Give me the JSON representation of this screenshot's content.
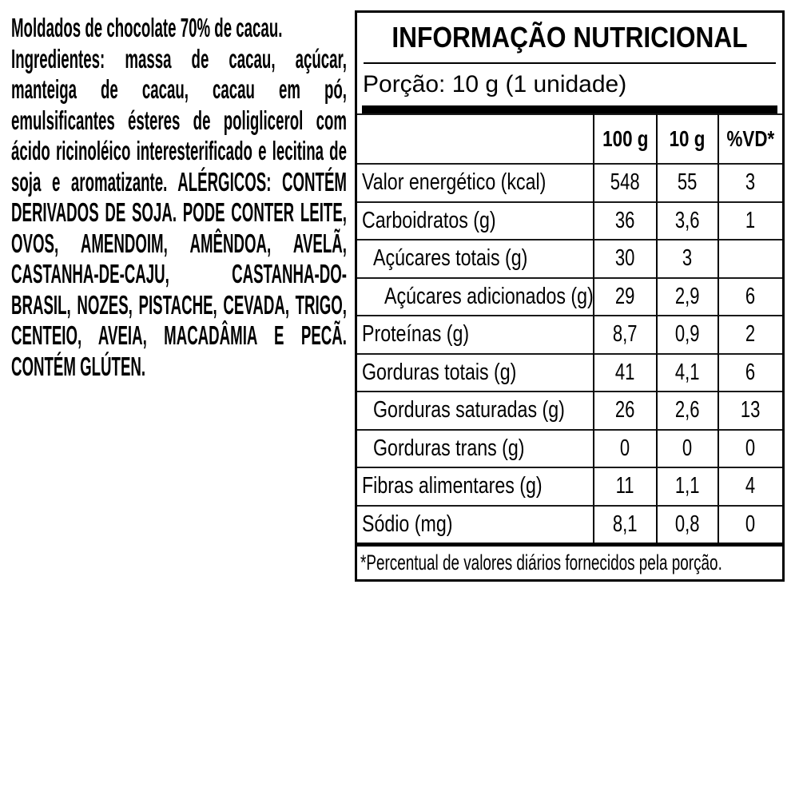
{
  "colors": {
    "text": "#000000",
    "background": "#ffffff",
    "table_border": "#000000"
  },
  "left_panel": {
    "intro": "Moldados de chocolate 70% de cacau.",
    "ingredients_label": "Ingredientes:",
    "ingredients_text": "massa de cacau, açúcar, manteiga de cacau, cacau em pó, emulsificantes ésteres de poliglicerol com ácido ricinoléico interesterificado e lecitina de soja e aromatizante.",
    "allergen_text": "ALÉRGICOS: CONTÉM DERIVADOS DE SOJA. PODE CONTER LEITE, OVOS, AMENDOIM, AMÊNDOA, AVELÃ, CASTANHA-DE-CAJU, CASTANHA-DO-BRASIL, NOZES, PISTACHE, CEVADA, TRIGO, CENTEIO, AVEIA, MACADÂMIA E PECÃ. CONTÉM GLÚTEN."
  },
  "nutrition_table": {
    "title": "INFORMAÇÃO NUTRICIONAL",
    "serving": "Porção: 10 g (1 unidade)",
    "columns": [
      "100 g",
      "10 g",
      "%VD*"
    ],
    "rows": [
      {
        "label": "Valor energético (kcal)",
        "indent": 0,
        "per100": "548",
        "per10": "55",
        "vd": "3"
      },
      {
        "label": "Carboidratos (g)",
        "indent": 0,
        "per100": "36",
        "per10": "3,6",
        "vd": "1"
      },
      {
        "label": "Açúcares totais (g)",
        "indent": 1,
        "per100": "30",
        "per10": "3",
        "vd": ""
      },
      {
        "label": "Açúcares adicionados (g)",
        "indent": 2,
        "per100": "29",
        "per10": "2,9",
        "vd": "6"
      },
      {
        "label": "Proteínas (g)",
        "indent": 0,
        "per100": "8,7",
        "per10": "0,9",
        "vd": "2"
      },
      {
        "label": "Gorduras totais (g)",
        "indent": 0,
        "per100": "41",
        "per10": "4,1",
        "vd": "6"
      },
      {
        "label": "Gorduras saturadas (g)",
        "indent": 1,
        "per100": "26",
        "per10": "2,6",
        "vd": "13"
      },
      {
        "label": "Gorduras trans (g)",
        "indent": 1,
        "per100": "0",
        "per10": "0",
        "vd": "0"
      },
      {
        "label": "Fibras alimentares (g)",
        "indent": 0,
        "per100": "11",
        "per10": "1,1",
        "vd": "4"
      },
      {
        "label": "Sódio (mg)",
        "indent": 0,
        "per100": "8,1",
        "per10": "0,8",
        "vd": "0"
      }
    ],
    "footnote": "*Percentual de valores diários fornecidos pela porção."
  }
}
